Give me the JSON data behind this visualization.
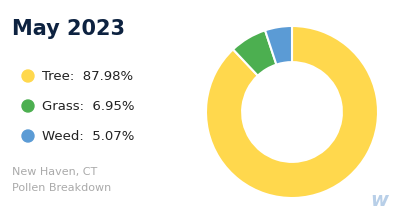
{
  "title": "May 2023",
  "subtitle_line1": "New Haven, CT",
  "subtitle_line2": "Pollen Breakdown",
  "categories": [
    "Tree",
    "Grass",
    "Weed"
  ],
  "values": [
    87.98,
    6.95,
    5.07
  ],
  "colors": [
    "#FFD84D",
    "#4CAF50",
    "#5B9BD5"
  ],
  "legend_labels": [
    "Tree:  87.98%",
    "Grass:  6.95%",
    "Weed:  5.07%"
  ],
  "background_color": "#ffffff",
  "title_color": "#0d2240",
  "subtitle_color": "#aaaaaa",
  "legend_text_color": "#222222",
  "start_angle": 90
}
